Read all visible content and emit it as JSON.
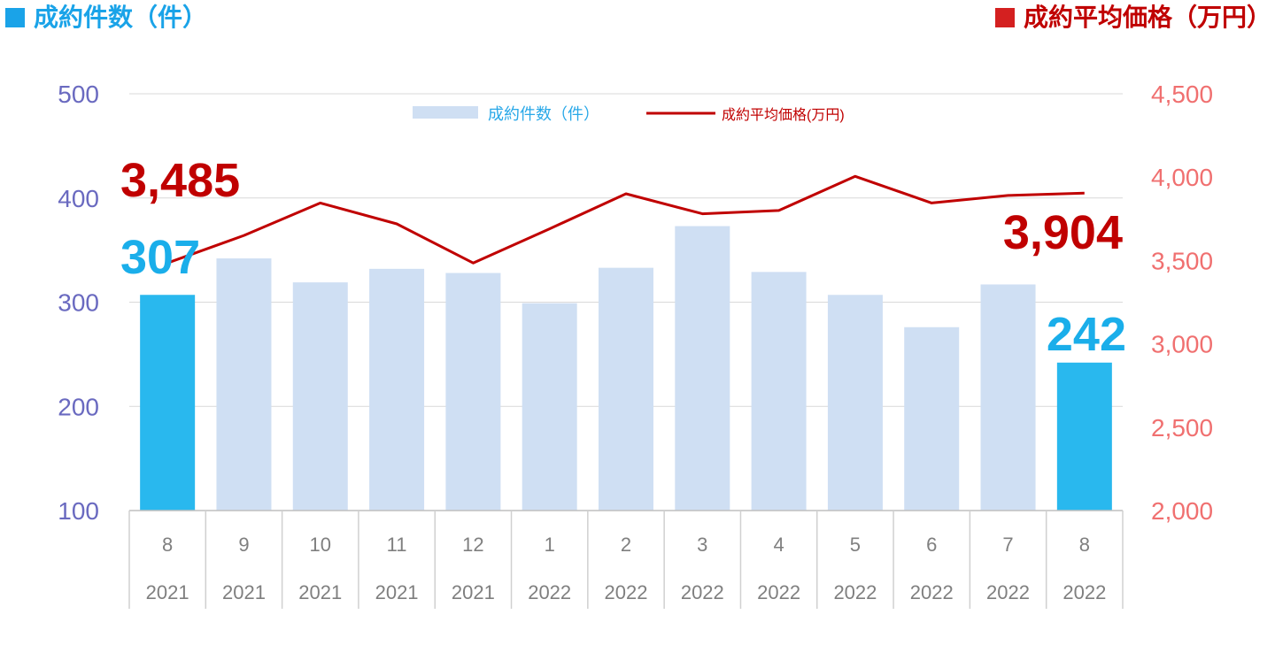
{
  "header": {
    "left_title": "成約件数（件）",
    "right_title": "成約平均価格（万円）",
    "left_color": "#1aa3e8",
    "right_color": "#c00000"
  },
  "chart_data": {
    "type": "bar",
    "categories": [
      {
        "month": "8",
        "year": "2021"
      },
      {
        "month": "9",
        "year": "2021"
      },
      {
        "month": "10",
        "year": "2021"
      },
      {
        "month": "11",
        "year": "2021"
      },
      {
        "month": "12",
        "year": "2021"
      },
      {
        "month": "1",
        "year": "2022"
      },
      {
        "month": "2",
        "year": "2022"
      },
      {
        "month": "3",
        "year": "2022"
      },
      {
        "month": "4",
        "year": "2022"
      },
      {
        "month": "5",
        "year": "2022"
      },
      {
        "month": "6",
        "year": "2022"
      },
      {
        "month": "7",
        "year": "2022"
      },
      {
        "month": "8",
        "year": "2022"
      }
    ],
    "series": [
      {
        "name": "成約件数（件）",
        "type": "bar",
        "axis": "left",
        "values": [
          307,
          342,
          319,
          332,
          328,
          299,
          333,
          373,
          329,
          307,
          276,
          317,
          242
        ],
        "color": "#cfdff3",
        "highlight_color": "#29b8ee",
        "highlight_indices": [
          0,
          12
        ]
      },
      {
        "name": "成約平均価格(万円)",
        "type": "line",
        "axis": "right",
        "values": [
          3485,
          3650,
          3845,
          3720,
          3485,
          3690,
          3900,
          3780,
          3800,
          4005,
          3845,
          3890,
          3904
        ],
        "color": "#c00000"
      }
    ],
    "y_left": {
      "range": [
        100,
        500
      ],
      "ticks": [
        "100",
        "200",
        "300",
        "400",
        "500"
      ],
      "color": "#6a6ac0"
    },
    "y_right": {
      "range": [
        2000,
        4500
      ],
      "ticks": [
        "2,000",
        "2,500",
        "3,000",
        "3,500",
        "4,000",
        "4,500"
      ],
      "color": "#f07070"
    },
    "annotations": {
      "first_bar": "307",
      "last_bar": "242",
      "first_price": "3,485",
      "last_price": "3,904"
    },
    "legend_position": "top-center",
    "grid": true
  }
}
